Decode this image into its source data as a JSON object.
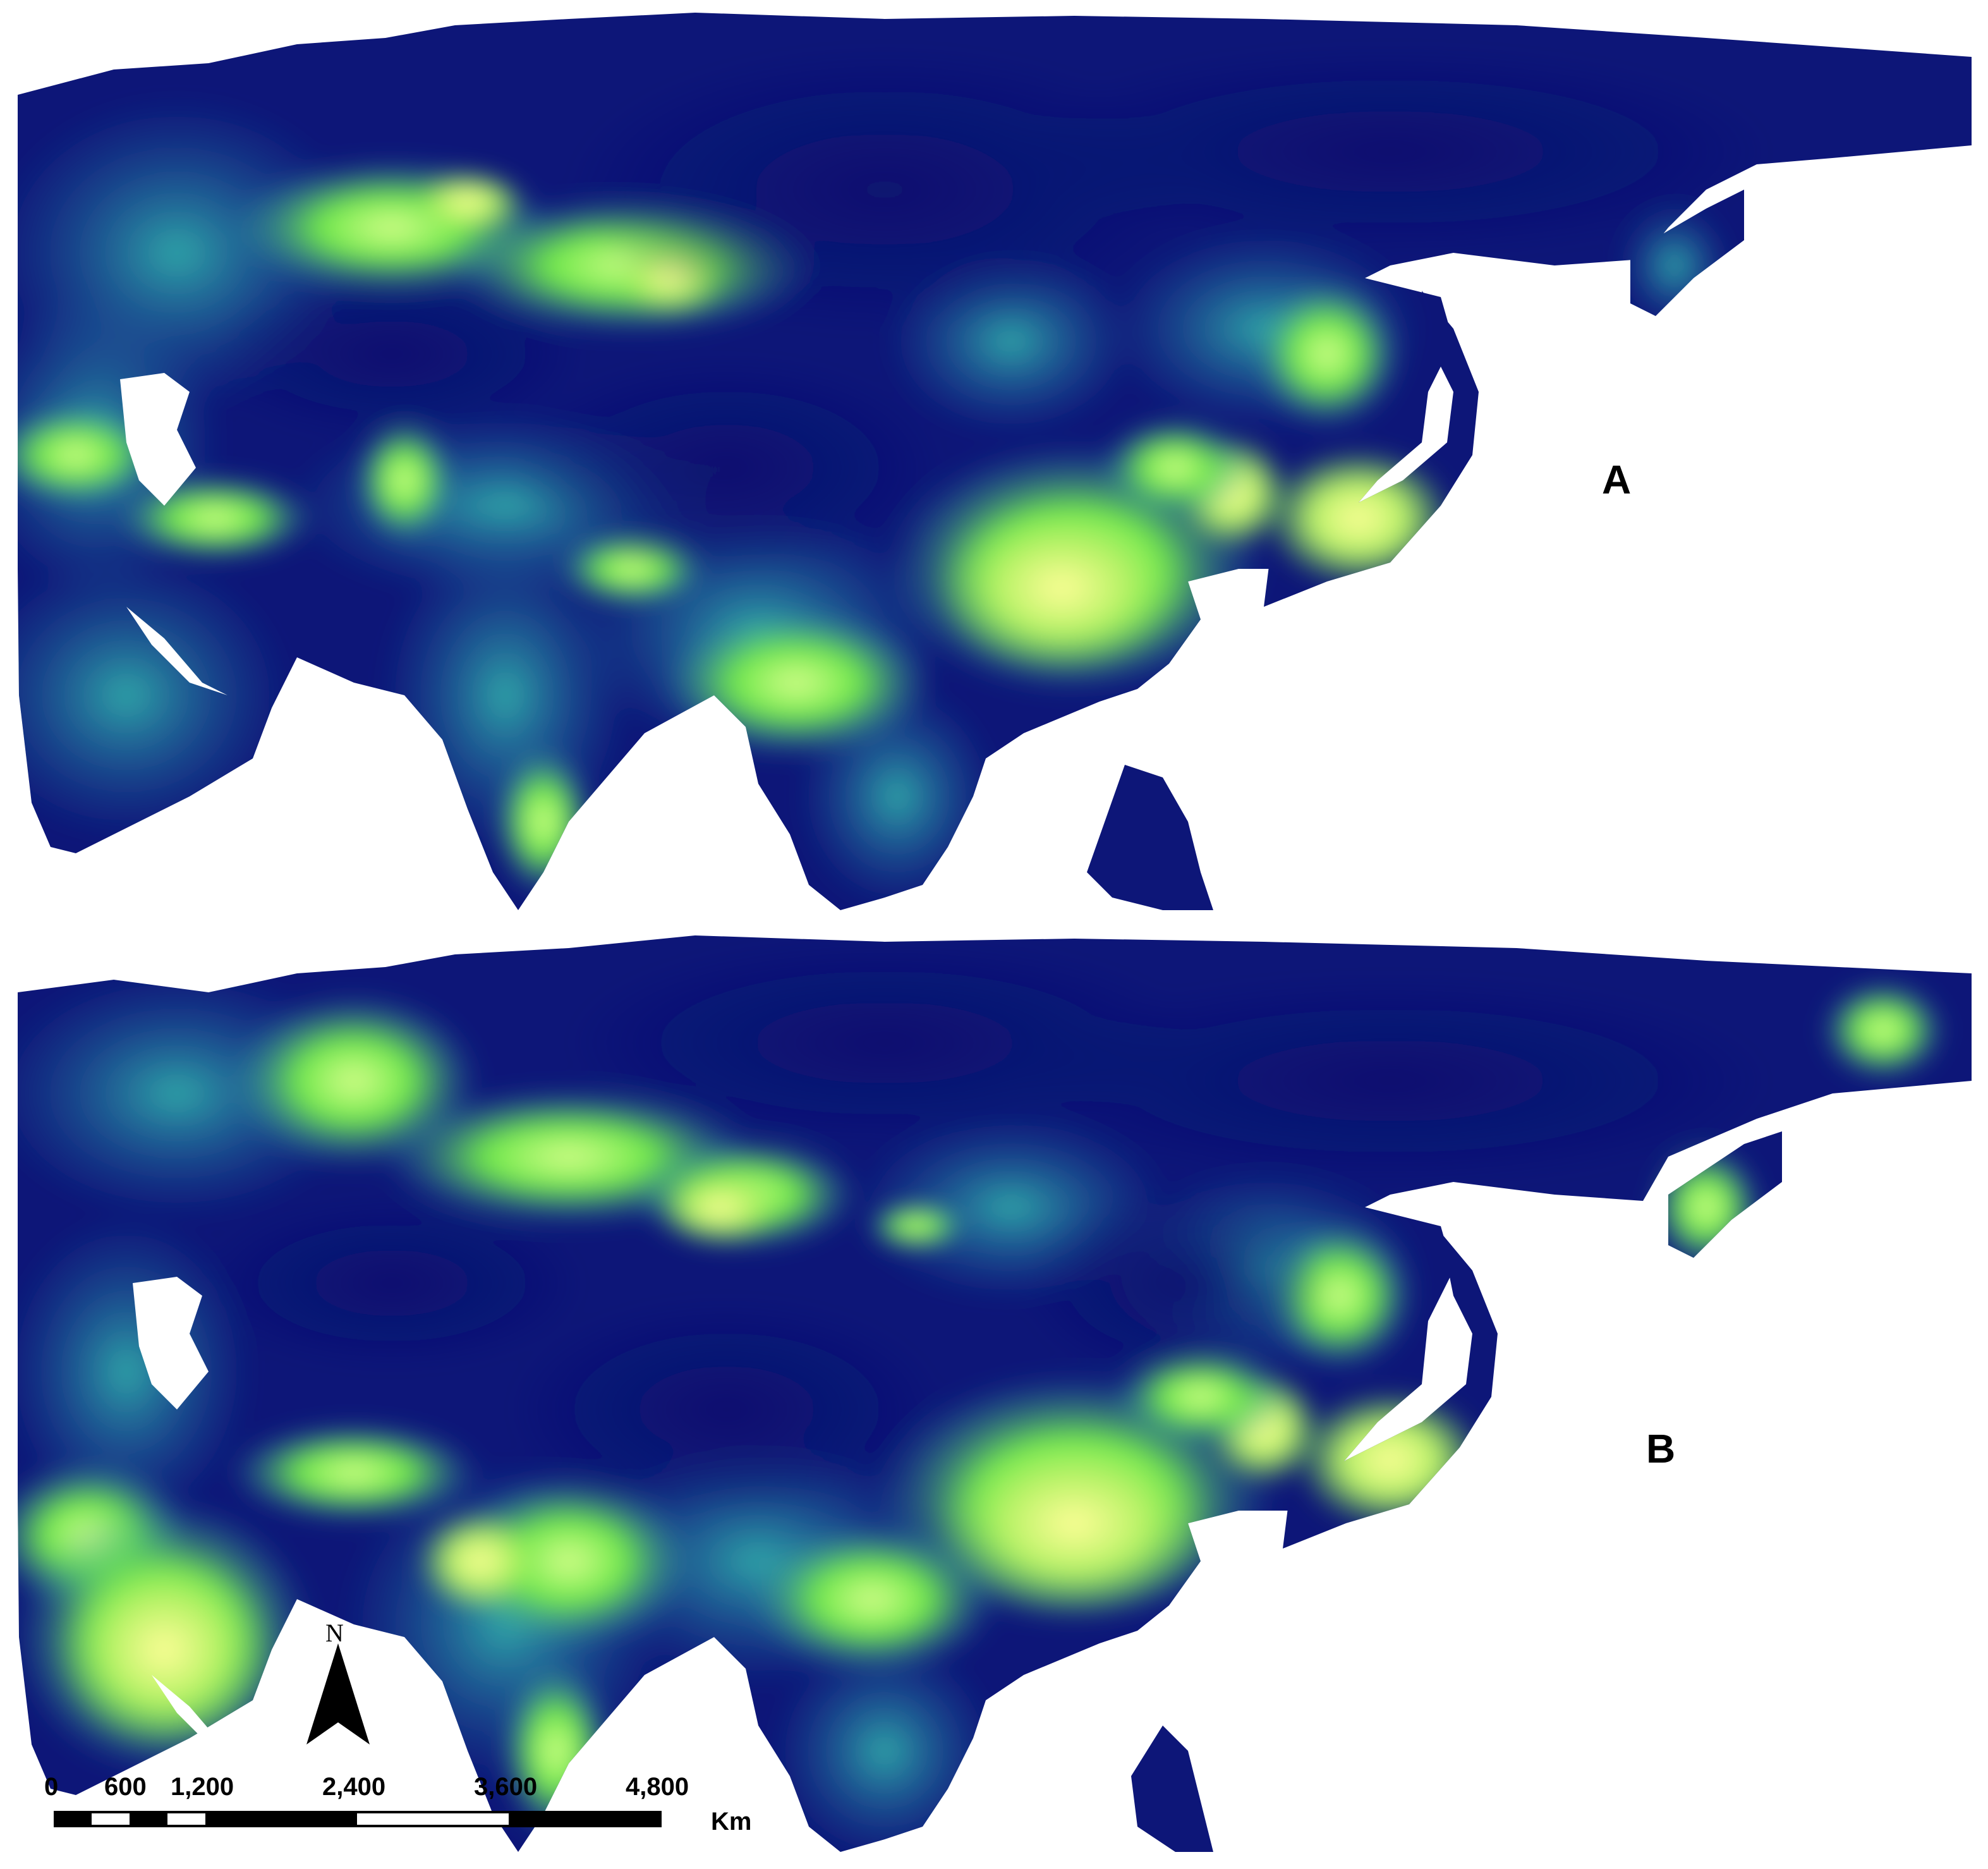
{
  "panels": [
    {
      "label": "A"
    },
    {
      "label": "B"
    }
  ],
  "colormap": {
    "low": "#0d1678",
    "mid": "#2a8bb0",
    "high": "#6fe84a",
    "max": "#fffe99",
    "no_data": "#ffffff"
  },
  "north_arrow": {
    "letter": "N"
  },
  "scale_bar": {
    "ticks": [
      "0",
      "600",
      "1,200",
      "2,400",
      "3,600",
      "4,800"
    ],
    "unit": "Km"
  }
}
